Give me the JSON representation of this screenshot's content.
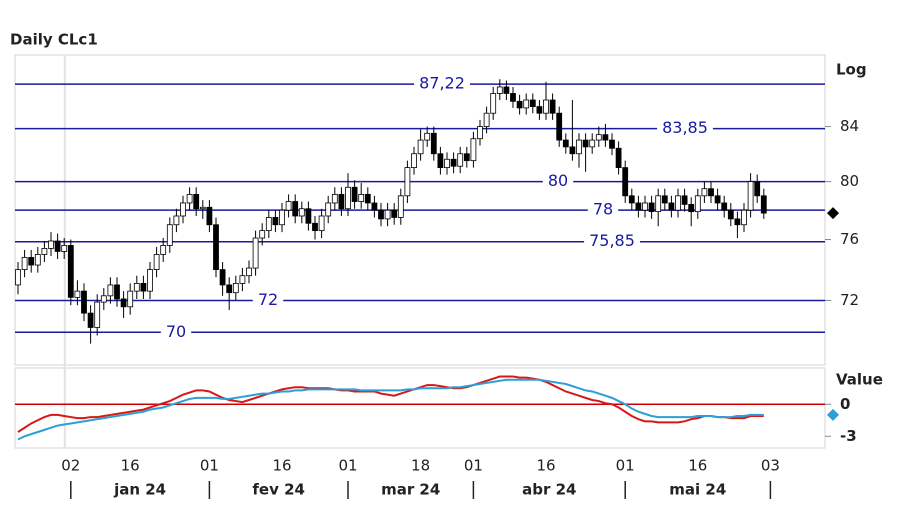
{
  "chart_data": [
    {
      "type": "candlestick",
      "title": "Daily CLc1",
      "y_label": "Log",
      "yscale": "log",
      "ylim": [
        68,
        89.5
      ],
      "yticks": [
        84,
        80,
        76,
        72
      ],
      "color_up": "#ffffff",
      "color_down": "#000000",
      "level_color": "#1a1a9c",
      "levels": [
        {
          "value": 87.22,
          "label": "87,22"
        },
        {
          "value": 83.85,
          "label": "83,85"
        },
        80,
        78,
        {
          "value": 75.85,
          "label": "75,85"
        },
        72,
        70
      ],
      "categories": [
        null,
        null,
        null,
        null,
        null,
        null,
        null,
        null,
        "02",
        null,
        null,
        null,
        null,
        null,
        null,
        null,
        null,
        "16",
        null,
        null,
        null,
        null,
        null,
        null,
        null,
        null,
        null,
        null,
        null,
        "01",
        null,
        null,
        null,
        null,
        null,
        null,
        null,
        null,
        null,
        null,
        "16",
        null,
        null,
        null,
        null,
        null,
        null,
        null,
        null,
        null,
        "01",
        null,
        null,
        null,
        null,
        null,
        null,
        null,
        null,
        null,
        null,
        "18",
        null,
        null,
        null,
        null,
        null,
        null,
        null,
        "01",
        null,
        null,
        null,
        null,
        null,
        null,
        null,
        null,
        null,
        null,
        "16",
        null,
        null,
        null,
        null,
        null,
        null,
        null,
        null,
        null,
        null,
        null,
        "01",
        null,
        null,
        null,
        null,
        null,
        null,
        null,
        null,
        null,
        null,
        "16",
        null,
        null,
        null,
        null,
        null,
        null,
        null,
        null,
        null,
        null,
        "03"
      ],
      "months": [
        "jan 24",
        "fev 24",
        "mar 24",
        "abr 24",
        "mai 24"
      ],
      "open": [
        73,
        74,
        74.8,
        74.3,
        75,
        75.4,
        75.9,
        75.2,
        75.6,
        72.2,
        72.6,
        71.2,
        70.3,
        71.9,
        72.3,
        73,
        72.1,
        71.6,
        72.6,
        73.1,
        72.6,
        74,
        75,
        75.6,
        77,
        77.6,
        78.5,
        79.1,
        78.1,
        78.2,
        77,
        74,
        73,
        72.5,
        73.1,
        73.6,
        74.1,
        76.1,
        76.6,
        77.5,
        77,
        78,
        78.6,
        77.6,
        78.1,
        77.1,
        76.6,
        77.6,
        78.5,
        79.1,
        78.1,
        79.6,
        78.6,
        79.1,
        78.5,
        78,
        77.4,
        78,
        77.5,
        79,
        81,
        82,
        83,
        83.5,
        82,
        81,
        81.6,
        81.1,
        82,
        81.5,
        83.1,
        84,
        85,
        86.5,
        87,
        86.5,
        85.9,
        85.4,
        86,
        85.5,
        85,
        86,
        85,
        83,
        82.5,
        82,
        83,
        82.5,
        83,
        83.4,
        83,
        82.4,
        81,
        79,
        78.5,
        78,
        78.5,
        77.9,
        79,
        78.5,
        78,
        79,
        78.4,
        77.9,
        79,
        79.5,
        79,
        78.5,
        78,
        77.4,
        77,
        78,
        80,
        79,
        null
      ],
      "high": [
        74.5,
        75.3,
        75.3,
        75.5,
        75.9,
        76.5,
        76.4,
        76.1,
        76,
        73.3,
        73.1,
        71.7,
        72.4,
        72.8,
        73.5,
        73.5,
        72.6,
        73.1,
        73.6,
        73.6,
        74.5,
        75.5,
        76.1,
        77.5,
        78.1,
        79,
        79.6,
        79.6,
        78.7,
        78.7,
        77.5,
        74.5,
        73.5,
        73.6,
        74.1,
        74.6,
        76.6,
        77.1,
        78,
        78,
        78.5,
        79.1,
        79.1,
        78.6,
        78.6,
        77.6,
        78.1,
        79,
        79.6,
        79.6,
        80.6,
        80.1,
        79.9,
        79.6,
        79,
        78.5,
        78.5,
        78.5,
        79.5,
        81.5,
        82.5,
        83.8,
        84,
        84,
        82.5,
        82.1,
        82.1,
        82.5,
        82.5,
        83.6,
        84.5,
        85.5,
        87,
        87.6,
        87.5,
        87,
        86.4,
        86.5,
        86.5,
        86,
        87.4,
        86.5,
        85.5,
        83.5,
        86,
        83.5,
        83.5,
        83.5,
        84,
        84.2,
        83.5,
        82.9,
        81.5,
        79.5,
        79,
        79,
        79,
        79.5,
        79.5,
        79,
        79.5,
        79.5,
        78.9,
        79.5,
        80,
        80,
        79.5,
        79,
        78.5,
        77.9,
        78.5,
        80.6,
        80.5,
        79.5,
        null
      ],
      "low": [
        72.4,
        73.5,
        73.8,
        73.8,
        74.5,
        74.9,
        74.7,
        74.7,
        71.7,
        71.7,
        70.7,
        69.3,
        69.8,
        71.4,
        71.8,
        71.6,
        70.9,
        71.1,
        72.1,
        72.1,
        72.1,
        73.5,
        74.5,
        75.1,
        76.5,
        77.1,
        78,
        77.6,
        77.4,
        76.5,
        73.5,
        72.3,
        71.4,
        72,
        72.6,
        73.1,
        73.6,
        75.6,
        76.1,
        76.5,
        76.5,
        77.5,
        77.1,
        77.1,
        76.6,
        76,
        76.1,
        77.1,
        78,
        77.6,
        77.6,
        78.1,
        78.1,
        78,
        77.5,
        76.9,
        76.9,
        77,
        77,
        78.5,
        80.5,
        81.5,
        82.5,
        81.5,
        80.5,
        80.5,
        80.6,
        80.6,
        81,
        81,
        82.6,
        83.5,
        84.5,
        86,
        86,
        85.4,
        84.9,
        84.9,
        85,
        84.5,
        84.5,
        84.5,
        82.5,
        82,
        81.5,
        81,
        80.7,
        82,
        82.5,
        82.5,
        81.9,
        80.5,
        78.5,
        78,
        77.5,
        77.5,
        77.4,
        76.9,
        78,
        77.5,
        77.5,
        77.9,
        76.9,
        77.4,
        78.5,
        78.5,
        78,
        77.5,
        76.9,
        76.1,
        76.5,
        77.5,
        78.5,
        77.4,
        null
      ],
      "close": [
        74,
        74.8,
        74.3,
        75,
        75.4,
        75.9,
        75.2,
        75.6,
        72.2,
        72.6,
        71.2,
        70.3,
        71.9,
        72.3,
        73,
        72.1,
        71.6,
        72.6,
        73.1,
        72.6,
        74,
        75,
        75.6,
        77,
        77.6,
        78.5,
        79.1,
        78.1,
        78.2,
        77,
        74,
        73,
        72.5,
        73.1,
        73.6,
        74.1,
        76.1,
        76.6,
        77.5,
        77,
        78,
        78.6,
        77.6,
        78.1,
        77.1,
        76.6,
        77.6,
        78.5,
        79.1,
        78.1,
        79.6,
        78.6,
        79.1,
        78.5,
        78,
        77.4,
        78,
        77.5,
        79,
        81,
        82,
        83,
        83.5,
        82,
        81,
        81.6,
        81.1,
        82,
        81.5,
        83.1,
        84,
        85,
        86.5,
        87,
        86.5,
        85.9,
        85.4,
        86,
        85.5,
        85,
        86,
        85,
        83,
        82.5,
        82,
        83,
        82.5,
        83,
        83.4,
        83,
        82.4,
        81,
        79,
        78.5,
        78,
        78.5,
        77.9,
        79,
        78.5,
        78,
        79,
        78.4,
        77.9,
        79,
        79.5,
        79,
        78.5,
        78,
        77.4,
        77,
        78,
        80,
        79,
        77.8,
        null
      ]
    },
    {
      "type": "line",
      "y_label": "Value",
      "ylim": [
        -4.1,
        3.4
      ],
      "yticks": [
        0,
        -3
      ],
      "zero_line_color": "#cc0000",
      "series": [
        {
          "color": "#d81818",
          "values": [
            -2.6,
            -2.2,
            -1.8,
            -1.5,
            -1.2,
            -1.0,
            -1.0,
            -1.1,
            -1.2,
            -1.3,
            -1.3,
            -1.2,
            -1.2,
            -1.1,
            -1.0,
            -0.9,
            -0.8,
            -0.7,
            -0.6,
            -0.5,
            -0.3,
            -0.1,
            0.1,
            0.3,
            0.6,
            0.9,
            1.1,
            1.3,
            1.3,
            1.2,
            0.9,
            0.6,
            0.4,
            0.3,
            0.2,
            0.4,
            0.6,
            0.8,
            1.0,
            1.2,
            1.4,
            1.5,
            1.6,
            1.6,
            1.5,
            1.5,
            1.5,
            1.5,
            1.4,
            1.3,
            1.3,
            1.2,
            1.2,
            1.2,
            1.2,
            1.0,
            0.9,
            0.8,
            1.0,
            1.2,
            1.4,
            1.6,
            1.8,
            1.8,
            1.7,
            1.6,
            1.5,
            1.5,
            1.6,
            1.8,
            2.0,
            2.2,
            2.4,
            2.6,
            2.6,
            2.6,
            2.5,
            2.5,
            2.4,
            2.3,
            2.1,
            1.8,
            1.5,
            1.2,
            1.0,
            0.8,
            0.6,
            0.4,
            0.3,
            0.1,
            0.0,
            -0.3,
            -0.7,
            -1.1,
            -1.4,
            -1.6,
            -1.6,
            -1.7,
            -1.7,
            -1.7,
            -1.7,
            -1.6,
            -1.4,
            -1.3,
            -1.1,
            -1.1,
            -1.2,
            -1.2,
            -1.3,
            -1.3,
            -1.3,
            -1.1,
            -1.1,
            -1.1,
            null
          ]
        },
        {
          "color": "#2a9fd8",
          "values": [
            -3.3,
            -3.0,
            -2.8,
            -2.6,
            -2.4,
            -2.2,
            -2.0,
            -1.9,
            -1.8,
            -1.7,
            -1.6,
            -1.5,
            -1.4,
            -1.3,
            -1.2,
            -1.1,
            -1.0,
            -0.9,
            -0.8,
            -0.7,
            -0.5,
            -0.4,
            -0.3,
            -0.1,
            0.1,
            0.3,
            0.5,
            0.6,
            0.6,
            0.6,
            0.6,
            0.5,
            0.5,
            0.6,
            0.7,
            0.8,
            0.9,
            1.0,
            1.0,
            1.1,
            1.2,
            1.2,
            1.3,
            1.3,
            1.4,
            1.4,
            1.4,
            1.4,
            1.4,
            1.4,
            1.4,
            1.4,
            1.3,
            1.3,
            1.3,
            1.3,
            1.3,
            1.3,
            1.3,
            1.4,
            1.4,
            1.5,
            1.5,
            1.5,
            1.5,
            1.5,
            1.6,
            1.6,
            1.7,
            1.8,
            1.9,
            2.0,
            2.1,
            2.2,
            2.3,
            2.3,
            2.3,
            2.3,
            2.3,
            2.3,
            2.2,
            2.1,
            2.0,
            1.9,
            1.7,
            1.5,
            1.3,
            1.2,
            1.0,
            0.8,
            0.6,
            0.3,
            0.0,
            -0.4,
            -0.7,
            -0.9,
            -1.1,
            -1.2,
            -1.2,
            -1.2,
            -1.2,
            -1.2,
            -1.2,
            -1.1,
            -1.1,
            -1.1,
            -1.2,
            -1.2,
            -1.2,
            -1.1,
            -1.1,
            -1.0,
            -1.0,
            -1.0,
            null
          ]
        }
      ]
    }
  ]
}
